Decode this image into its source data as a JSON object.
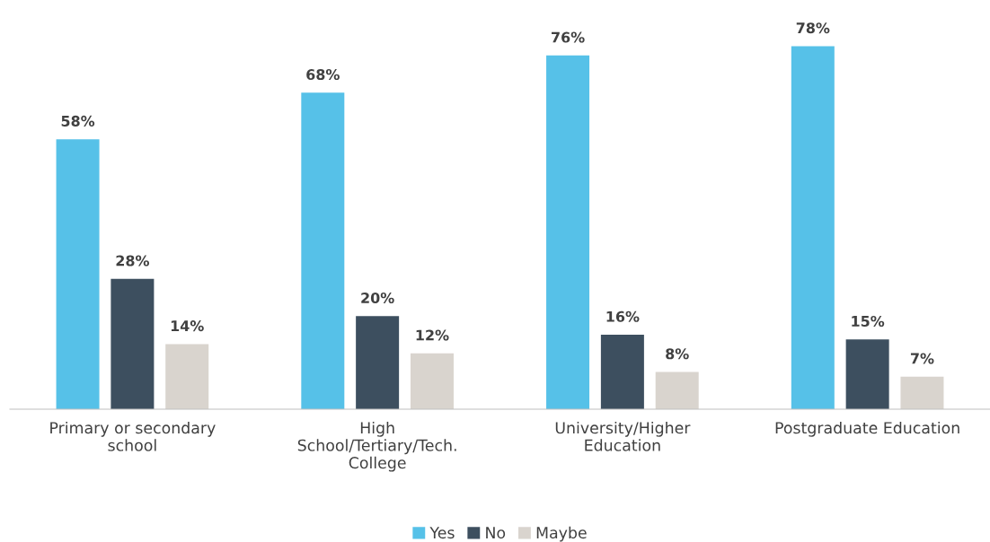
{
  "chart_data": {
    "type": "bar",
    "categories": [
      "Primary or secondary\nschool",
      "High\nSchool/Tertiary/Tech.\nCollege",
      "University/Higher\nEducation",
      "Postgraduate Education"
    ],
    "series": [
      {
        "name": "Yes",
        "color": "#56c1e8",
        "values": [
          58,
          68,
          76,
          78
        ],
        "value_labels": [
          "58%",
          "68%",
          "76%",
          "78%"
        ]
      },
      {
        "name": "No",
        "color": "#3d4f5f",
        "values": [
          28,
          20,
          16,
          15
        ],
        "value_labels": [
          "28%",
          "20%",
          "16%",
          "15%"
        ]
      },
      {
        "name": "Maybe",
        "color": "#d9d4ce",
        "values": [
          14,
          12,
          8,
          7
        ],
        "value_labels": [
          "14%",
          "12%",
          "8%",
          "7%"
        ]
      }
    ],
    "grid": false,
    "legend": "bottom"
  }
}
